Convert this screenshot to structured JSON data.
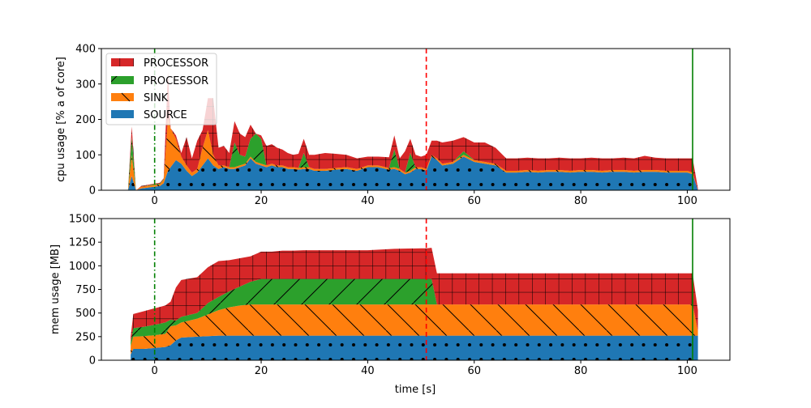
{
  "chart_data": [
    {
      "type": "area",
      "stacked": true,
      "xlabel": "",
      "ylabel": "cpu usage [% a of core]",
      "xlim": [
        -10,
        108
      ],
      "ylim": [
        0,
        400
      ],
      "xticks": [
        0,
        20,
        40,
        60,
        80,
        100
      ],
      "yticks": [
        0,
        100,
        200,
        300,
        400
      ],
      "legend_position": "top-left",
      "vlines": [
        {
          "x": 0,
          "style": "dashdot",
          "color": "#008000"
        },
        {
          "x": 51,
          "style": "dashed",
          "color": "#ff0000"
        },
        {
          "x": 101,
          "style": "solid",
          "color": "#008000"
        }
      ],
      "x": [
        -5,
        -4.3,
        -3.5,
        -2.5,
        0,
        1,
        1.7,
        2.5,
        3,
        4,
        5,
        6,
        7,
        8,
        9,
        10,
        11,
        12,
        13,
        14,
        15,
        16,
        17,
        18,
        19,
        20,
        21,
        22,
        23,
        24,
        25,
        26,
        27,
        28,
        29,
        30,
        32,
        34,
        36,
        38,
        40,
        42,
        44,
        45,
        46,
        47,
        48,
        49,
        50,
        51,
        52,
        53,
        54,
        56,
        58,
        60,
        62,
        64,
        66,
        68,
        70,
        72,
        74,
        76,
        78,
        80,
        82,
        84,
        86,
        88,
        90,
        92,
        94,
        96,
        98,
        100,
        101,
        102
      ],
      "series": [
        {
          "name": "SOURCE",
          "color": "#1f77b4",
          "hatch": "dots",
          "values": [
            0,
            40,
            0,
            5,
            10,
            12,
            20,
            55,
            65,
            85,
            75,
            55,
            40,
            50,
            70,
            90,
            70,
            60,
            65,
            60,
            60,
            65,
            70,
            90,
            75,
            70,
            65,
            70,
            65,
            65,
            60,
            60,
            58,
            60,
            60,
            55,
            55,
            58,
            60,
            55,
            65,
            65,
            58,
            60,
            55,
            45,
            50,
            60,
            60,
            55,
            95,
            85,
            70,
            75,
            95,
            80,
            75,
            70,
            50,
            50,
            52,
            50,
            52,
            52,
            50,
            52,
            52,
            50,
            52,
            52,
            50,
            52,
            52,
            50,
            50,
            50,
            45,
            0
          ]
        },
        {
          "name": "SINK",
          "color": "#ff7f0e",
          "hatch": "diag",
          "values": [
            0,
            60,
            0,
            5,
            5,
            5,
            10,
            150,
            110,
            60,
            20,
            15,
            10,
            10,
            50,
            80,
            30,
            10,
            5,
            5,
            5,
            5,
            5,
            5,
            5,
            5,
            5,
            5,
            5,
            5,
            5,
            5,
            5,
            5,
            5,
            5,
            5,
            5,
            5,
            5,
            5,
            5,
            5,
            5,
            5,
            5,
            5,
            5,
            5,
            5,
            5,
            5,
            5,
            5,
            5,
            5,
            5,
            5,
            5,
            5,
            5,
            5,
            5,
            5,
            5,
            5,
            5,
            5,
            5,
            5,
            5,
            5,
            5,
            5,
            5,
            5,
            5,
            0
          ]
        },
        {
          "name": "PROCESSOR",
          "color": "#2ca02c",
          "hatch": "backdiag",
          "values": [
            0,
            50,
            0,
            0,
            2,
            2,
            2,
            0,
            0,
            0,
            0,
            0,
            0,
            0,
            0,
            0,
            0,
            0,
            0,
            0,
            70,
            30,
            20,
            50,
            80,
            70,
            0,
            0,
            0,
            0,
            0,
            0,
            0,
            40,
            0,
            0,
            0,
            0,
            0,
            0,
            0,
            0,
            0,
            50,
            0,
            0,
            50,
            0,
            0,
            0,
            0,
            0,
            0,
            0,
            10,
            0,
            0,
            0,
            0,
            0,
            0,
            0,
            0,
            0,
            0,
            0,
            0,
            0,
            0,
            0,
            0,
            0,
            0,
            0,
            0,
            0,
            0,
            0
          ]
        },
        {
          "name": "PROCESSOR",
          "color": "#d62728",
          "hatch": "grid",
          "values": [
            0,
            30,
            0,
            2,
            2,
            2,
            2,
            130,
            0,
            10,
            10,
            80,
            40,
            80,
            50,
            90,
            160,
            50,
            55,
            40,
            60,
            60,
            55,
            40,
            0,
            10,
            55,
            55,
            50,
            45,
            40,
            35,
            40,
            40,
            35,
            40,
            45,
            40,
            35,
            30,
            25,
            25,
            30,
            40,
            30,
            60,
            40,
            35,
            30,
            40,
            40,
            50,
            60,
            60,
            40,
            50,
            55,
            45,
            35,
            35,
            35,
            35,
            33,
            35,
            35,
            33,
            35,
            35,
            33,
            35,
            35,
            40,
            35,
            35,
            35,
            35,
            40,
            5
          ]
        }
      ]
    },
    {
      "type": "area",
      "stacked": true,
      "xlabel": "time [s]",
      "ylabel": "mem usage [MB]",
      "xlim": [
        -10,
        108
      ],
      "ylim": [
        0,
        1500
      ],
      "xticks": [
        0,
        20,
        40,
        60,
        80,
        100
      ],
      "yticks": [
        0,
        250,
        500,
        750,
        1000,
        1250,
        1500
      ],
      "vlines": [
        {
          "x": 0,
          "style": "dashdot",
          "color": "#008000"
        },
        {
          "x": 51,
          "style": "dashed",
          "color": "#ff0000"
        },
        {
          "x": 101,
          "style": "solid",
          "color": "#008000"
        }
      ],
      "x": [
        -4.5,
        -4,
        -2,
        0,
        2,
        3,
        4,
        5,
        8,
        10,
        12,
        14,
        16,
        18,
        20,
        22,
        24,
        26,
        28,
        30,
        35,
        40,
        45,
        50,
        51,
        52,
        53,
        60,
        70,
        80,
        90,
        100,
        101,
        102
      ],
      "series": [
        {
          "name": "SOURCE",
          "color": "#1f77b4",
          "hatch": "dots",
          "values": [
            60,
            120,
            120,
            130,
            140,
            160,
            210,
            240,
            250,
            255,
            260,
            260,
            260,
            260,
            260,
            260,
            260,
            260,
            260,
            260,
            260,
            260,
            260,
            260,
            260,
            260,
            260,
            260,
            260,
            260,
            260,
            260,
            260,
            260
          ]
        },
        {
          "name": "SINK",
          "color": "#ff7f0e",
          "hatch": "diag",
          "values": [
            90,
            130,
            135,
            135,
            140,
            200,
            160,
            160,
            190,
            230,
            270,
            300,
            320,
            330,
            330,
            330,
            330,
            330,
            330,
            330,
            330,
            330,
            330,
            330,
            330,
            330,
            330,
            330,
            330,
            330,
            330,
            330,
            330,
            50
          ]
        },
        {
          "name": "PROCESSOR",
          "color": "#2ca02c",
          "hatch": "backdiag",
          "values": [
            40,
            90,
            100,
            110,
            120,
            70,
            50,
            60,
            60,
            120,
            140,
            170,
            200,
            240,
            270,
            270,
            270,
            270,
            270,
            270,
            270,
            270,
            270,
            270,
            270,
            270,
            0,
            0,
            0,
            0,
            0,
            0,
            0,
            0
          ]
        },
        {
          "name": "PROCESSOR",
          "color": "#d62728",
          "hatch": "grid",
          "values": [
            60,
            150,
            165,
            175,
            180,
            190,
            350,
            390,
            380,
            380,
            380,
            330,
            300,
            270,
            290,
            290,
            300,
            300,
            305,
            305,
            305,
            305,
            320,
            325,
            325,
            330,
            330,
            330,
            330,
            330,
            330,
            330,
            330,
            220
          ]
        }
      ]
    }
  ]
}
